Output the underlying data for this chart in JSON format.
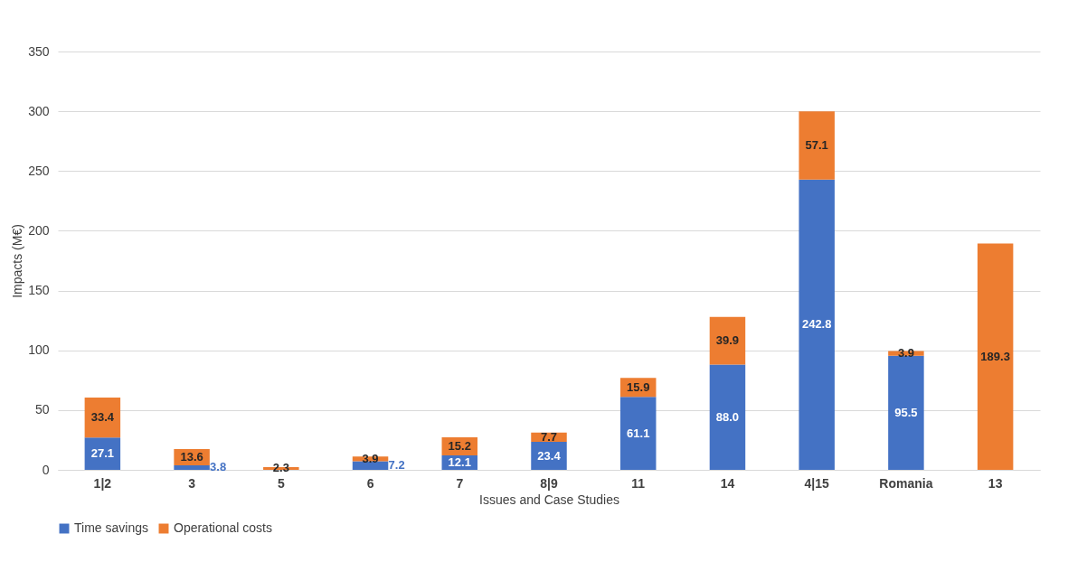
{
  "chart_data": {
    "type": "bar",
    "stacked": true,
    "xlabel": "Issues and Case Studies",
    "ylabel": "Impacts (M€)",
    "categories": [
      "1|2",
      "3",
      "5",
      "6",
      "7",
      "8|9",
      "11",
      "14",
      "4|15",
      "Romania",
      "13"
    ],
    "series": [
      {
        "name": "Time savings",
        "color": "#4472c4",
        "values": [
          27.1,
          3.8,
          null,
          7.2,
          12.1,
          23.4,
          61.1,
          88.0,
          242.8,
          95.5,
          null
        ],
        "value_labels": [
          "27.1",
          "3.8",
          null,
          "7.2",
          "12.1",
          "23.4",
          "61.1",
          "88.0",
          "242.8",
          "95.5",
          null
        ]
      },
      {
        "name": "Operational costs",
        "color": "#ed7d31",
        "values": [
          33.4,
          13.6,
          2.3,
          3.9,
          15.2,
          7.7,
          15.9,
          39.9,
          57.1,
          3.9,
          189.3
        ],
        "value_labels": [
          "33.4",
          "13.6",
          "2.3",
          "3.9",
          "15.2",
          "7.7",
          "15.9",
          "39.9",
          "57.1",
          "3.9",
          "189.3"
        ]
      }
    ],
    "ylim": [
      0,
      350
    ],
    "yticks": [
      0,
      50,
      100,
      150,
      200,
      250,
      300,
      350
    ],
    "grid": "y",
    "legend": "bottom"
  }
}
